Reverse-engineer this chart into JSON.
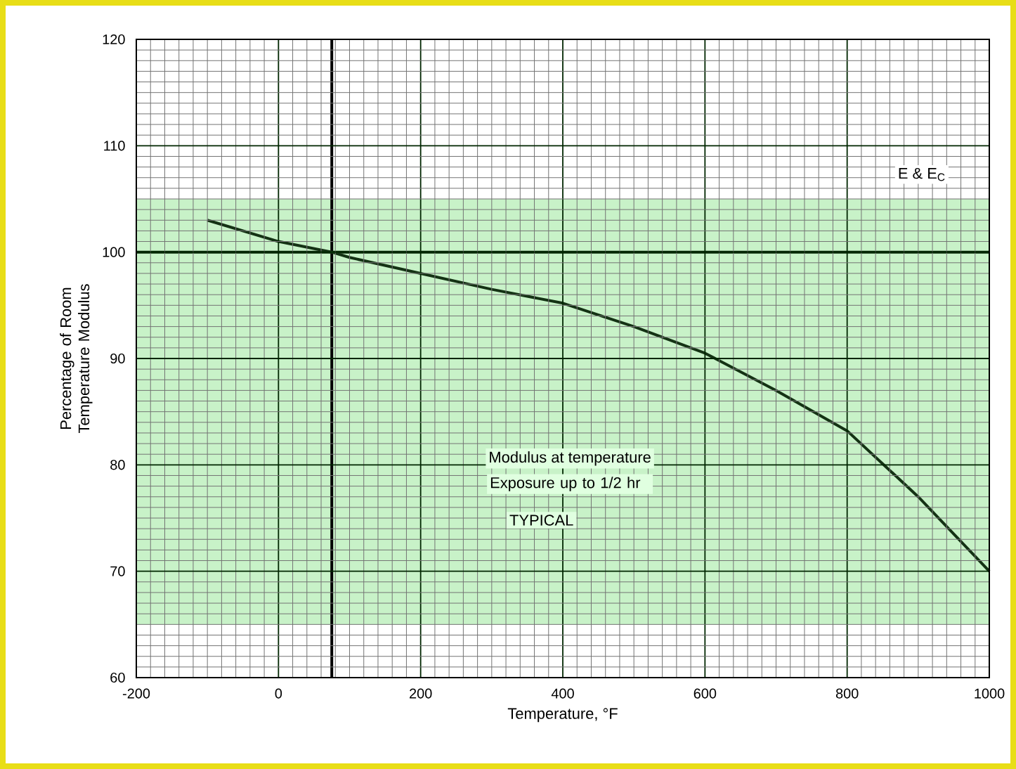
{
  "chart_data": {
    "type": "line",
    "xlabel": "Temperature, °F",
    "ylabel": "Percentage of Room Temperature Modulus",
    "x": [
      -100,
      0,
      75,
      100,
      200,
      300,
      400,
      500,
      600,
      700,
      800,
      900,
      1000
    ],
    "series": [
      {
        "color": "#143214",
        "values": [
          103,
          101,
          100,
          99.5,
          98,
          96.5,
          95.2,
          93,
          90.5,
          87,
          83.2,
          77,
          70
        ]
      }
    ],
    "xlim": [
      -200,
      1000
    ],
    "ylim": [
      60,
      120
    ],
    "xticks": [
      -200,
      0,
      200,
      400,
      600,
      800,
      1000
    ],
    "yticks": [
      60,
      70,
      80,
      90,
      100,
      110,
      120
    ],
    "grid": true,
    "marker": "none",
    "line_style": "solid",
    "ref_lines": [
      {
        "axis": "x",
        "value": 75,
        "color": "#000000"
      },
      {
        "axis": "y",
        "value": 100,
        "color": "#0a2a0a"
      }
    ],
    "bands": [
      {
        "axis": "y",
        "from": 65,
        "to": 105,
        "color": "#c8f2c8"
      }
    ],
    "annotations": [
      "E & E$_{C}$",
      "Modulus at temperature",
      "Exposure up to 1/2 hr",
      "TYPICAL"
    ]
  }
}
